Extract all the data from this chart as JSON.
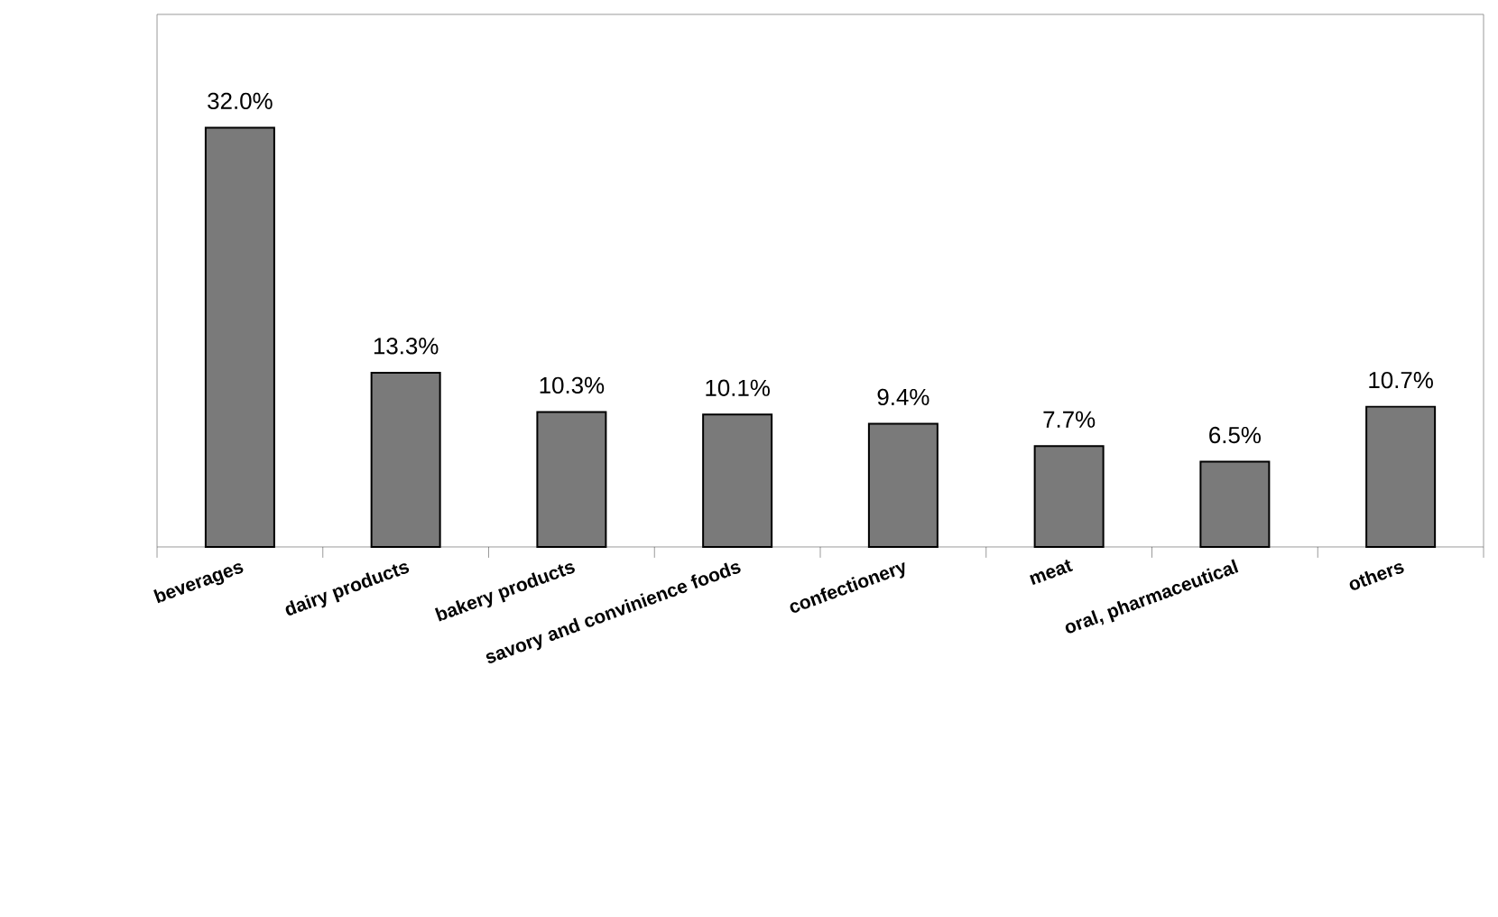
{
  "chart_data": {
    "type": "bar",
    "categories": [
      "beverages",
      "dairy products",
      "bakery products",
      "savory and convinience foods",
      "confectionery",
      "meat",
      "oral, pharmaceutical",
      "others"
    ],
    "values": [
      32.0,
      13.3,
      10.3,
      10.1,
      9.4,
      7.7,
      6.5,
      10.7
    ],
    "value_labels": [
      "32.0%",
      "13.3%",
      "10.3%",
      "10.1%",
      "9.4%",
      "7.7%",
      "6.5%",
      "10.7%"
    ],
    "color": "#7a7a7a"
  }
}
